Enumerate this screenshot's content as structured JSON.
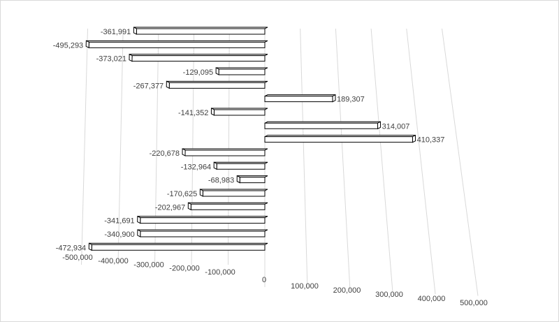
{
  "chart_data": {
    "type": "bar",
    "orientation": "horizontal",
    "style": "3d",
    "title": "",
    "xlabel": "",
    "ylabel": "",
    "xlim": [
      -500000,
      500000
    ],
    "x_ticks": [
      -500000,
      -400000,
      -300000,
      -200000,
      -100000,
      0,
      100000,
      200000,
      300000,
      400000,
      500000
    ],
    "x_tick_labels": [
      "-500,000",
      "-400,000",
      "-300,000",
      "-200,000",
      "-100,000",
      "0",
      "100,000",
      "200,000",
      "300,000",
      "400,000",
      "500,000"
    ],
    "grid": true,
    "legend": "none",
    "values": [
      -361991,
      -495293,
      -373021,
      -129095,
      -267377,
      189307,
      -141352,
      314007,
      410337,
      -220678,
      -132964,
      -68983,
      -170625,
      -202967,
      -341691,
      -340900,
      -472934
    ],
    "data_labels": [
      "-361,991",
      "-495,293",
      "-373,021",
      "-129,095",
      "-267,377",
      "189,307",
      "-141,352",
      "314,007",
      "410,337",
      "-220,678",
      "-132,964",
      "-68,983",
      "-170,625",
      "-202,967",
      "-341,691",
      "-340,900",
      "-472,934"
    ],
    "colors": {
      "bar_fill": "#ffffff",
      "bar_stroke": "#000000",
      "grid": "#d9d9d9",
      "text": "#404040"
    }
  }
}
